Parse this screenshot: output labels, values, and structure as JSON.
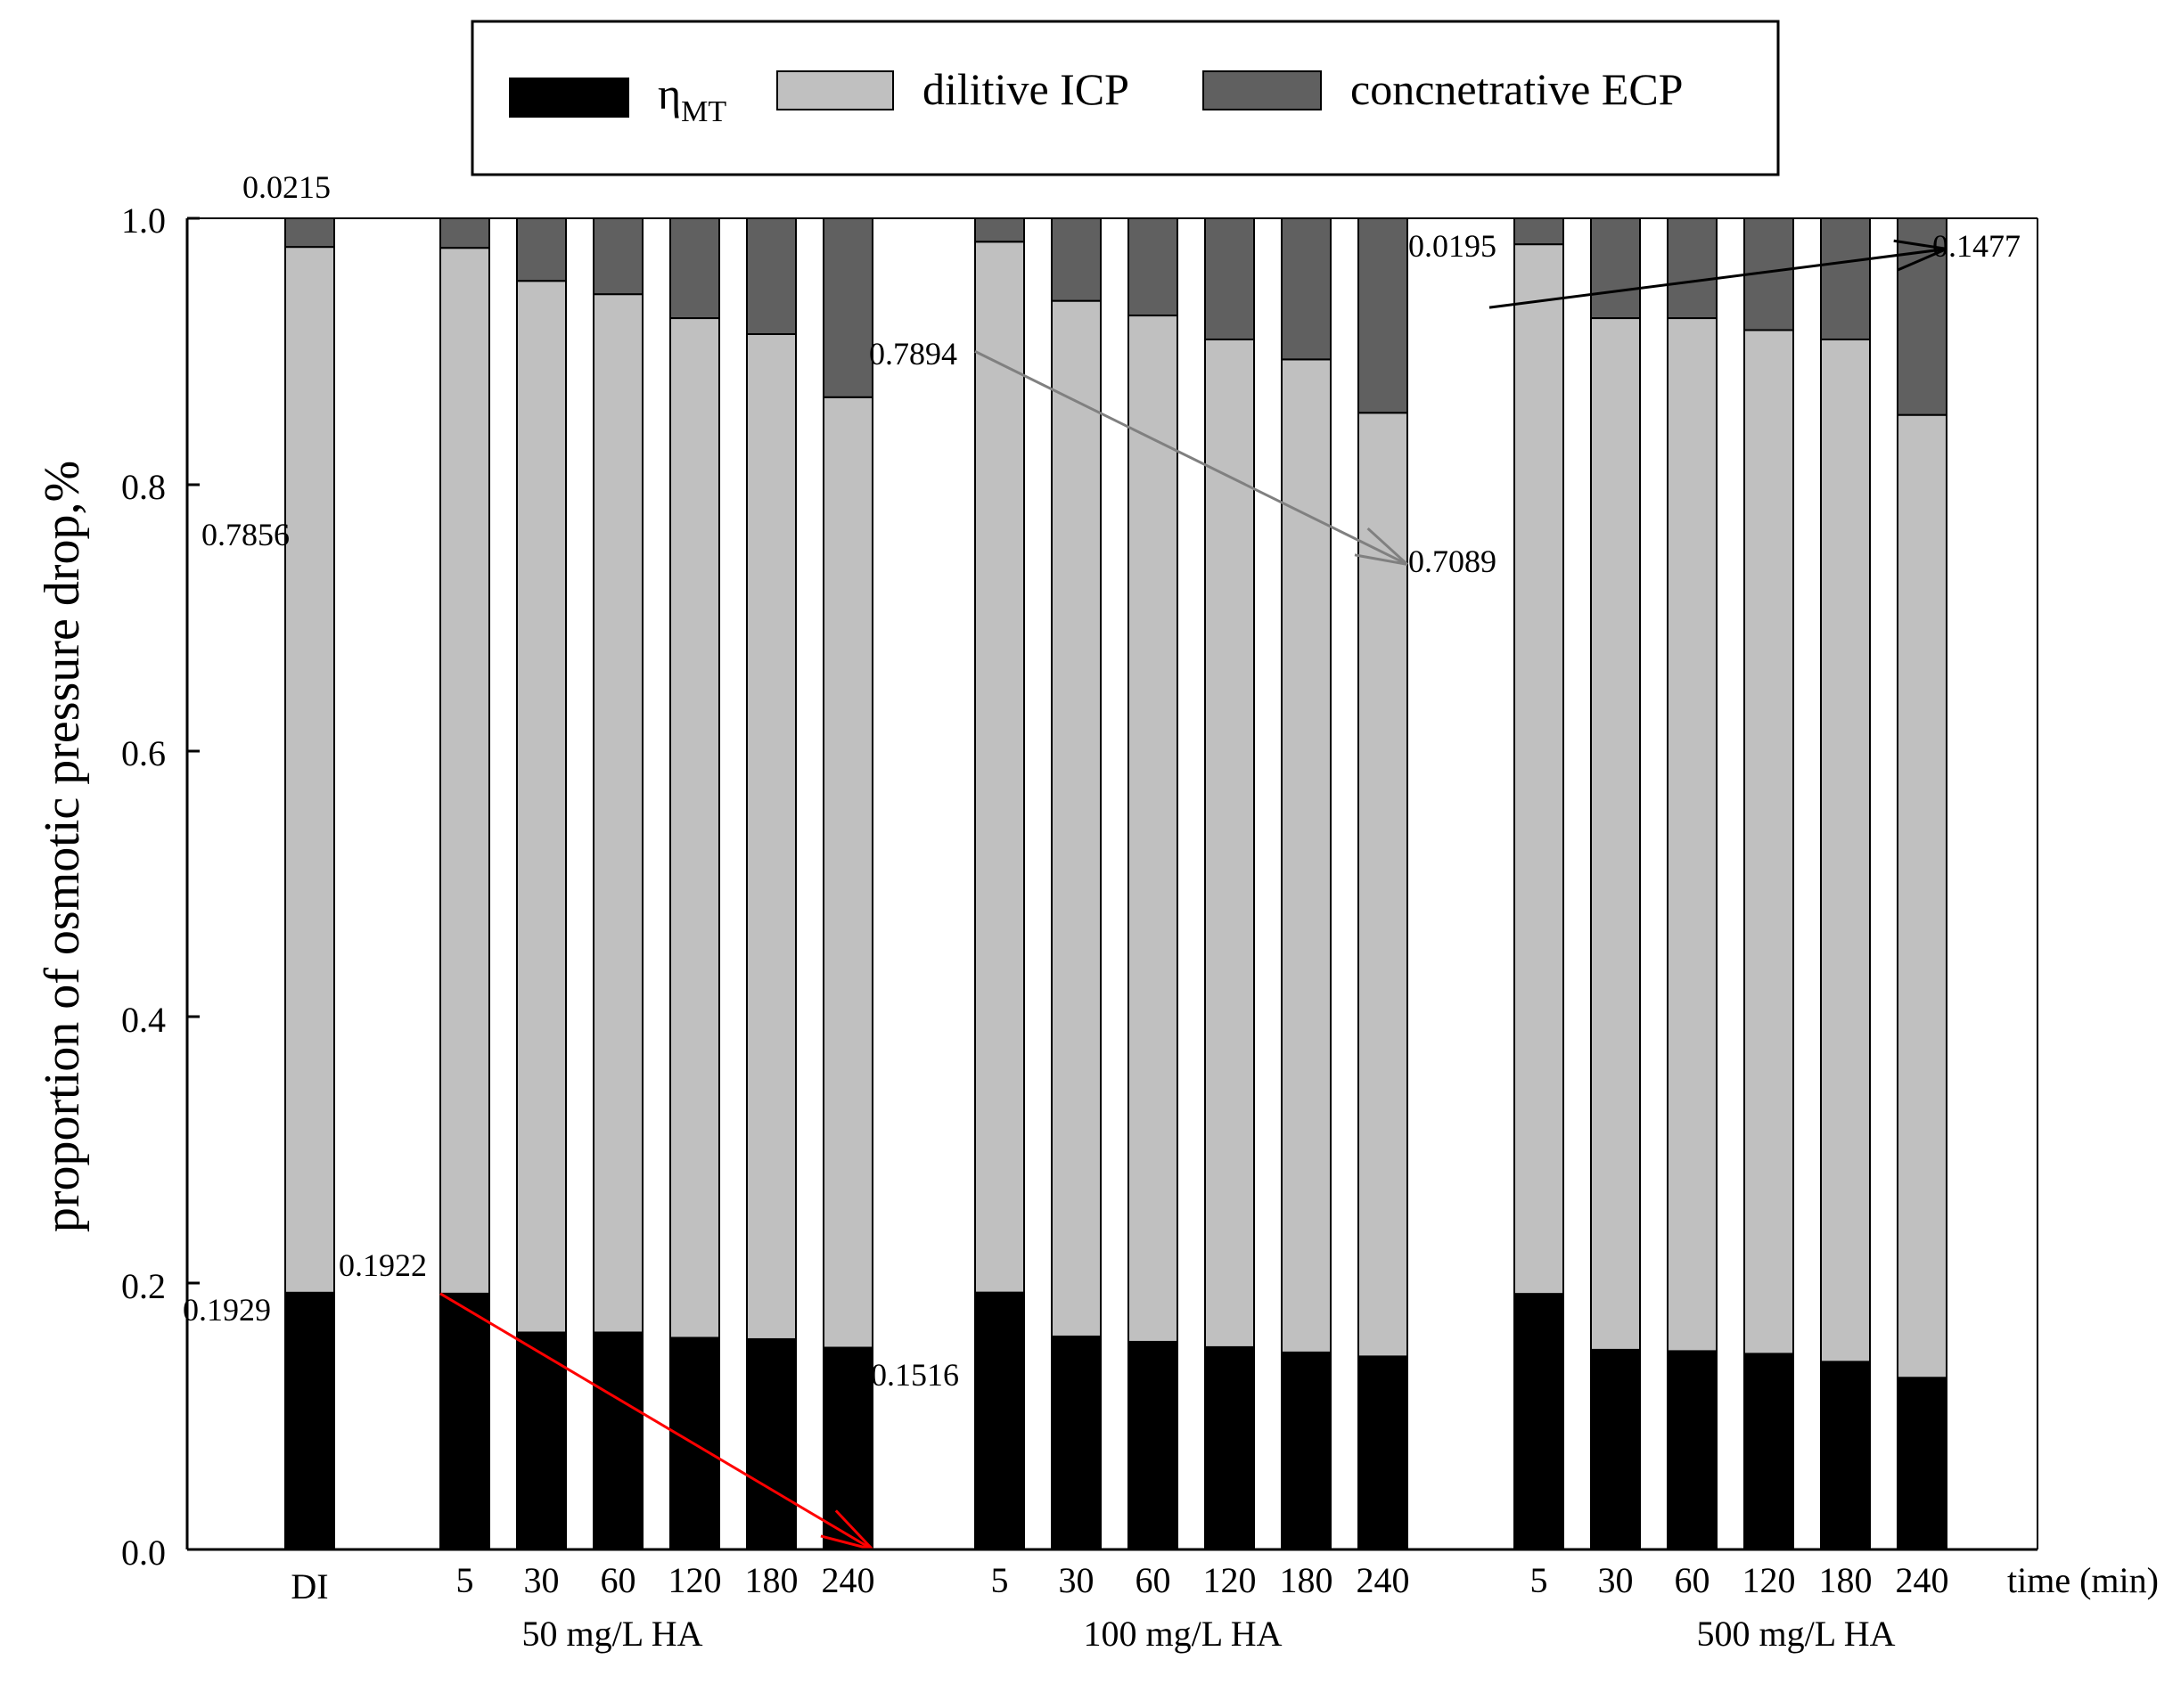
{
  "chart_data": {
    "type": "bar",
    "stacked": true,
    "ylabel": "proportion of osmotic pressure drop,%",
    "xlabel": "time (min)",
    "ylim": [
      0,
      1.0
    ],
    "yticks": [
      "0.0",
      "0.2",
      "0.4",
      "0.6",
      "0.8",
      "1.0"
    ],
    "legend": {
      "placement": "top-center",
      "entries": [
        {
          "key": "eta",
          "label": "η",
          "sub": "MT",
          "color": "#000000"
        },
        {
          "key": "icp",
          "label": "dilitive ICP",
          "color": "#c0c0c0"
        },
        {
          "key": "ecp",
          "label": "concnetrative ECP",
          "color": "#606060"
        }
      ]
    },
    "groups": [
      {
        "label": "",
        "bars": [
          {
            "label": "DI",
            "eta": 0.1929,
            "icp": 0.7856,
            "ecp": 0.0215
          }
        ]
      },
      {
        "label": "50 mg/L HA",
        "bars": [
          {
            "label": "5",
            "eta": 0.1922,
            "icp": 0.7856,
            "ecp": 0.0222
          },
          {
            "label": "30",
            "eta": 0.163,
            "icp": 0.79,
            "ecp": 0.047
          },
          {
            "label": "60",
            "eta": 0.163,
            "icp": 0.78,
            "ecp": 0.057
          },
          {
            "label": "120",
            "eta": 0.159,
            "icp": 0.766,
            "ecp": 0.075
          },
          {
            "label": "180",
            "eta": 0.158,
            "icp": 0.755,
            "ecp": 0.087
          },
          {
            "label": "240",
            "eta": 0.1516,
            "icp": 0.714,
            "ecp": 0.1344
          }
        ]
      },
      {
        "label": "100 mg/L HA",
        "bars": [
          {
            "label": "5",
            "eta": 0.193,
            "icp": 0.7894,
            "ecp": 0.0176
          },
          {
            "label": "30",
            "eta": 0.16,
            "icp": 0.778,
            "ecp": 0.062
          },
          {
            "label": "60",
            "eta": 0.156,
            "icp": 0.771,
            "ecp": 0.073
          },
          {
            "label": "120",
            "eta": 0.152,
            "icp": 0.757,
            "ecp": 0.091
          },
          {
            "label": "180",
            "eta": 0.148,
            "icp": 0.746,
            "ecp": 0.106
          },
          {
            "label": "240",
            "eta": 0.145,
            "icp": 0.7089,
            "ecp": 0.1461
          }
        ]
      },
      {
        "label": "500 mg/L HA",
        "bars": [
          {
            "label": "5",
            "eta": 0.192,
            "icp": 0.7885,
            "ecp": 0.0195
          },
          {
            "label": "30",
            "eta": 0.15,
            "icp": 0.775,
            "ecp": 0.075
          },
          {
            "label": "60",
            "eta": 0.149,
            "icp": 0.776,
            "ecp": 0.075
          },
          {
            "label": "120",
            "eta": 0.147,
            "icp": 0.769,
            "ecp": 0.084
          },
          {
            "label": "180",
            "eta": 0.141,
            "icp": 0.768,
            "ecp": 0.091
          },
          {
            "label": "240",
            "eta": 0.129,
            "icp": 0.7233,
            "ecp": 0.1477
          }
        ]
      }
    ],
    "annotations": [
      "0.0215",
      "0.7856",
      "0.1929",
      "0.1922",
      "0.1516",
      "0.7894",
      "0.7089",
      "0.0195",
      "0.1477"
    ],
    "trend_arrows": [
      {
        "from_group": 1,
        "from_bar": 0,
        "from_y": 0.1922,
        "to_group": 1,
        "to_bar": 5,
        "to_y": 0.0,
        "color": "#ff0000"
      },
      {
        "from_group": 2,
        "from_bar": 0,
        "from_y": 0.9,
        "to_group": 2,
        "to_bar": 5,
        "to_y": 0.74,
        "color": "#808080"
      },
      {
        "from_group": 3,
        "from_bar": 0,
        "from_y": 0.933,
        "to_group": 3,
        "to_bar": 5,
        "to_y": 0.977,
        "color": "#000000"
      }
    ]
  }
}
